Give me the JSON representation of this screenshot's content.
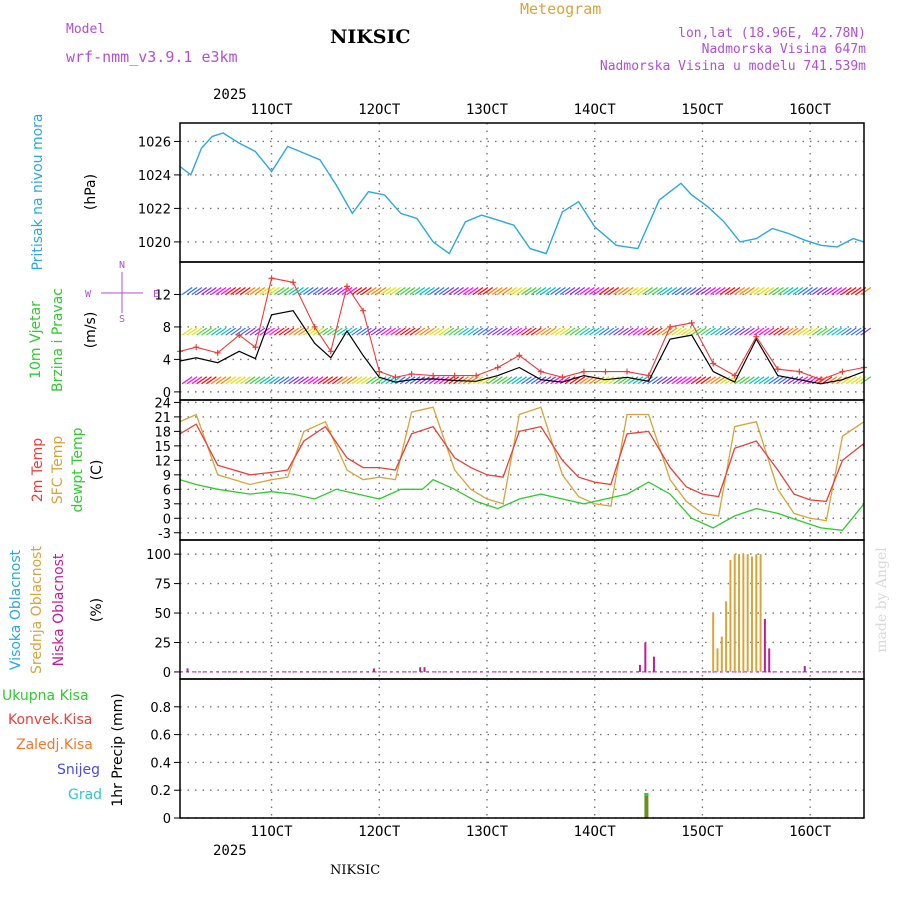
{
  "header": {
    "model_label": "Model",
    "model_name": "wrf-nmm_v3.9.1 e3km",
    "station": "NIKSIC",
    "title": "Meteogram",
    "lonlat": "lon,lat (18.96E, 42.78N)",
    "altitude": "Nadmorska Visina 647m",
    "model_altitude": "Nadmorska Visina u modelu 741.539m"
  },
  "footer": {
    "station": "NIKSIC",
    "credit": "made by Angel"
  },
  "colors": {
    "pressure": "#29a9e0",
    "temp2m": "#e8413a",
    "sfc": "#d9a43a",
    "dewpt": "#2ecc2e",
    "highcloud": "#29a9e0",
    "midcloud": "#d9a43a",
    "lowcloud": "#c21a9b",
    "wind_speed": "#000000",
    "wind_gust": "#ee3b3b",
    "precip": "#2ecc2e",
    "purple": "#b24fd6"
  },
  "x_axis": {
    "year": "2025",
    "ticks": [
      "11OCT",
      "12OCT",
      "13OCT",
      "14OCT",
      "15OCT",
      "16OCT"
    ],
    "tick_days": [
      11,
      12,
      13,
      14,
      15,
      16
    ],
    "range_days": [
      10.15,
      16.5
    ]
  },
  "chart_data": [
    {
      "type": "line",
      "title": "Pritisak na nivou mora",
      "ylabel": "(hPa)",
      "ylim": [
        1018.8,
        1027.1
      ],
      "yticks": [
        "1020",
        "1022",
        "1024",
        "1026"
      ],
      "yticks_values": [
        1020,
        1022,
        1024,
        1026
      ],
      "series": [
        {
          "name": "Pressure",
          "x": [
            10.15,
            10.25,
            10.35,
            10.45,
            10.55,
            10.7,
            10.85,
            11.0,
            11.15,
            11.3,
            11.45,
            11.6,
            11.75,
            11.9,
            12.05,
            12.2,
            12.35,
            12.5,
            12.65,
            12.8,
            12.95,
            13.1,
            13.25,
            13.4,
            13.55,
            13.7,
            13.85,
            14.0,
            14.2,
            14.4,
            14.6,
            14.8,
            14.9,
            15.05,
            15.2,
            15.35,
            15.5,
            15.65,
            15.8,
            15.95,
            16.1,
            16.25,
            16.4,
            16.5
          ],
          "y": [
            1024.5,
            1024.0,
            1025.6,
            1026.3,
            1026.5,
            1025.9,
            1025.4,
            1024.2,
            1025.7,
            1025.3,
            1024.9,
            1023.4,
            1021.7,
            1023.0,
            1022.8,
            1021.7,
            1021.4,
            1020.0,
            1019.3,
            1021.2,
            1021.6,
            1021.3,
            1021.0,
            1019.6,
            1019.3,
            1021.8,
            1022.4,
            1020.9,
            1019.8,
            1019.6,
            1022.5,
            1023.5,
            1022.8,
            1022.1,
            1021.2,
            1020.0,
            1020.2,
            1020.8,
            1020.5,
            1020.1,
            1019.8,
            1019.7,
            1020.2,
            1020.0
          ]
        }
      ]
    },
    {
      "type": "line",
      "title": "10m Vjetar Brzina i Pravac",
      "ylabel": "(m/s)",
      "ylim": [
        -1,
        16
      ],
      "yticks": [
        "0",
        "4",
        "8",
        "12"
      ],
      "yticks_values": [
        0,
        4,
        8,
        12
      ],
      "compass": {
        "north": "N",
        "east": "E",
        "west": "W",
        "south": "S"
      },
      "series": [
        {
          "name": "Wind speed",
          "x": [
            10.15,
            10.3,
            10.5,
            10.7,
            10.85,
            11.0,
            11.2,
            11.4,
            11.55,
            11.7,
            11.85,
            12.0,
            12.15,
            12.3,
            12.5,
            12.7,
            12.9,
            13.1,
            13.3,
            13.5,
            13.7,
            13.9,
            14.1,
            14.3,
            14.5,
            14.7,
            14.9,
            15.1,
            15.3,
            15.5,
            15.7,
            15.9,
            16.1,
            16.3,
            16.5
          ],
          "y": [
            3.8,
            4.2,
            3.6,
            5.0,
            4.1,
            9.5,
            10.0,
            6.0,
            4.2,
            7.5,
            4.5,
            1.8,
            1.2,
            1.5,
            1.6,
            1.4,
            1.3,
            2.0,
            3.0,
            1.5,
            1.2,
            2.0,
            1.5,
            1.8,
            1.3,
            6.5,
            7.0,
            2.5,
            1.2,
            6.5,
            2.0,
            1.5,
            1.0,
            1.5,
            2.5
          ]
        },
        {
          "name": "Wind gust",
          "x": [
            10.15,
            10.3,
            10.5,
            10.7,
            10.85,
            11.0,
            11.2,
            11.4,
            11.55,
            11.7,
            11.85,
            12.0,
            12.15,
            12.3,
            12.5,
            12.7,
            12.9,
            13.1,
            13.3,
            13.5,
            13.7,
            13.9,
            14.1,
            14.3,
            14.5,
            14.7,
            14.9,
            15.1,
            15.3,
            15.5,
            15.7,
            15.9,
            16.1,
            16.3,
            16.5
          ],
          "y": [
            5.0,
            5.5,
            4.8,
            7.0,
            5.5,
            14.0,
            13.5,
            8.0,
            5.0,
            13.0,
            10.0,
            2.5,
            1.8,
            2.2,
            2.0,
            2.0,
            2.0,
            3.0,
            4.5,
            2.5,
            1.8,
            2.5,
            2.5,
            2.5,
            2.0,
            8.0,
            8.5,
            3.5,
            2.0,
            6.8,
            2.8,
            2.5,
            1.5,
            2.5,
            3.0
          ]
        }
      ]
    },
    {
      "type": "line",
      "title": "2m Temp / SFC Temp / dewpt Temp",
      "ylabel": "(C)",
      "ylim": [
        -4.5,
        24.5
      ],
      "yticks": [
        "-3",
        "0",
        "3",
        "6",
        "9",
        "12",
        "15",
        "18",
        "21",
        "24"
      ],
      "yticks_values": [
        -3,
        0,
        3,
        6,
        9,
        12,
        15,
        18,
        21,
        24
      ],
      "series": [
        {
          "name": "2m Temp",
          "x": [
            10.15,
            10.3,
            10.5,
            10.8,
            11.0,
            11.15,
            11.3,
            11.5,
            11.7,
            11.85,
            12.0,
            12.15,
            12.3,
            12.5,
            12.7,
            12.85,
            13.0,
            13.15,
            13.3,
            13.5,
            13.7,
            13.85,
            14.0,
            14.15,
            14.3,
            14.5,
            14.7,
            14.85,
            15.0,
            15.15,
            15.3,
            15.5,
            15.7,
            15.85,
            16.0,
            16.15,
            16.3,
            16.5
          ],
          "y": [
            17.5,
            19.5,
            11.0,
            9.0,
            9.5,
            10.0,
            16.0,
            19.0,
            12.5,
            10.5,
            10.5,
            10.0,
            17.5,
            19.0,
            12.5,
            10.5,
            9.0,
            8.5,
            18.0,
            19.0,
            12.0,
            8.5,
            7.5,
            7.0,
            17.5,
            18.0,
            10.5,
            6.5,
            5.0,
            4.5,
            14.5,
            16.0,
            10.0,
            5.0,
            3.8,
            3.5,
            12.0,
            15.5
          ]
        },
        {
          "name": "SFC Temp",
          "x": [
            10.15,
            10.3,
            10.5,
            10.8,
            11.0,
            11.15,
            11.3,
            11.5,
            11.7,
            11.85,
            12.0,
            12.15,
            12.3,
            12.5,
            12.7,
            12.85,
            13.0,
            13.15,
            13.3,
            13.5,
            13.7,
            13.85,
            14.0,
            14.15,
            14.3,
            14.5,
            14.7,
            14.85,
            15.0,
            15.15,
            15.3,
            15.5,
            15.7,
            15.85,
            16.0,
            16.15,
            16.3,
            16.5
          ],
          "y": [
            20.0,
            21.5,
            9.0,
            7.0,
            8.0,
            8.5,
            18.0,
            20.0,
            10.0,
            8.0,
            8.5,
            8.0,
            22.0,
            23.0,
            10.0,
            6.0,
            4.0,
            3.0,
            21.5,
            23.0,
            9.0,
            4.5,
            3.0,
            2.5,
            21.5,
            21.5,
            8.0,
            3.5,
            1.0,
            0.5,
            19.0,
            20.0,
            6.0,
            1.0,
            0.0,
            -0.5,
            17.0,
            20.0
          ]
        },
        {
          "name": "Dewpt Temp",
          "x": [
            10.15,
            10.3,
            10.5,
            10.8,
            11.0,
            11.2,
            11.4,
            11.6,
            11.8,
            12.0,
            12.2,
            12.4,
            12.5,
            12.7,
            12.9,
            13.1,
            13.3,
            13.5,
            13.7,
            13.9,
            14.1,
            14.3,
            14.5,
            14.7,
            14.9,
            15.1,
            15.3,
            15.5,
            15.7,
            15.9,
            16.1,
            16.3,
            16.5
          ],
          "y": [
            8.0,
            7.0,
            6.0,
            5.0,
            5.5,
            5.0,
            4.0,
            6.0,
            5.0,
            4.0,
            6.0,
            6.0,
            8.0,
            6.0,
            3.5,
            2.0,
            4.0,
            5.0,
            4.0,
            3.0,
            4.0,
            5.0,
            7.5,
            5.0,
            0.0,
            -2.0,
            0.5,
            2.0,
            1.0,
            -0.5,
            -2.0,
            -2.5,
            3.0
          ]
        }
      ]
    },
    {
      "type": "bar",
      "title": "Visoka / Srednja / Niska Oblacnost",
      "ylabel": "(%)",
      "ylim": [
        -6,
        112
      ],
      "yticks": [
        "0",
        "25",
        "50",
        "75",
        "100"
      ],
      "yticks_values": [
        0,
        25,
        50,
        75,
        100
      ],
      "series": [
        {
          "name": "Srednja Oblacnost",
          "x": [
            15.1,
            15.14,
            15.18,
            15.22,
            15.26,
            15.3,
            15.34,
            15.38,
            15.42,
            15.46,
            15.5,
            15.54
          ],
          "y": [
            50,
            20,
            30,
            60,
            95,
            100,
            100,
            100,
            100,
            98,
            100,
            100
          ]
        },
        {
          "name": "Niska Oblacnost",
          "x": [
            10.22,
            11.95,
            12.38,
            12.42,
            14.42,
            14.47,
            14.55,
            15.58,
            15.62,
            15.66,
            15.95
          ],
          "y": [
            3,
            3,
            4,
            4,
            6,
            25,
            13,
            45,
            20,
            0,
            5
          ]
        }
      ]
    },
    {
      "type": "bar",
      "title": "1hr Precip",
      "ylabel": "1hr Precip (mm)",
      "ylim": [
        0,
        1.0
      ],
      "yticks": [
        "0",
        "0.2",
        "0.4",
        "0.6",
        "0.8"
      ],
      "yticks_values": [
        0,
        0.2,
        0.4,
        0.6,
        0.8
      ],
      "legend": [
        "Ukupna Kisa",
        "Konvek.Kisa",
        "Zaledj.Kisa",
        "Snijeg",
        "Grad"
      ],
      "series": [
        {
          "name": "Ukupna Kisa",
          "x": [
            14.48
          ],
          "y": [
            0.18
          ]
        }
      ]
    }
  ]
}
